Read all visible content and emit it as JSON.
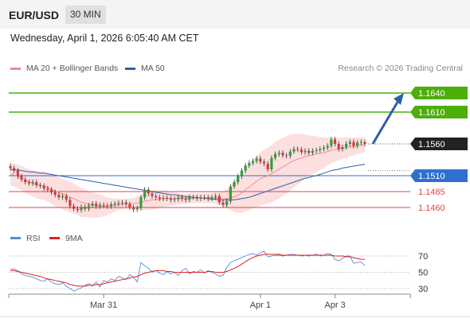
{
  "header": {
    "pair": "EUR/USD",
    "timeframe": "30 MIN"
  },
  "datetime": "Wednesday, April 1, 2026 6:05:40 AM CET",
  "legend": [
    {
      "label": "MA 20 + Bollinger Bands",
      "color": "#f28c8c"
    },
    {
      "label": "MA 50",
      "color": "#2f5fa8"
    }
  ],
  "credit": "Research © 2026 Trading Central",
  "rsi_legend": [
    {
      "label": "RSI",
      "color": "#5b8bd9"
    },
    {
      "label": "9MA",
      "color": "#e02020"
    }
  ],
  "chart_data": {
    "type": "candlestick",
    "price_range": [
      1.143,
      1.1665
    ],
    "levels": [
      {
        "value": 1.164,
        "label": "1.1640",
        "color": "#4caf0a",
        "style": "target"
      },
      {
        "value": 1.161,
        "label": "1.1610",
        "color": "#4caf0a",
        "style": "target"
      },
      {
        "value": 1.156,
        "label": "1.1560",
        "color": "#222222",
        "style": "current"
      },
      {
        "value": 1.151,
        "label": "1.1510",
        "color": "#2f6fd1",
        "style": "pivot"
      },
      {
        "value": 1.1485,
        "label": "1.1485",
        "color": "#d84a4a",
        "style": "support"
      },
      {
        "value": 1.146,
        "label": "1.1460",
        "color": "#d84a4a",
        "style": "support"
      }
    ],
    "closes": [
      1.1522,
      1.1518,
      1.1509,
      1.1504,
      1.15,
      1.1498,
      1.15,
      1.1495,
      1.1494,
      1.149,
      1.1488,
      1.1484,
      1.148,
      1.1476,
      1.1478,
      1.1472,
      1.1462,
      1.1458,
      1.1456,
      1.1461,
      1.1458,
      1.1463,
      1.1466,
      1.1462,
      1.1464,
      1.1463,
      1.1462,
      1.1465,
      1.1466,
      1.1467,
      1.1468,
      1.1465,
      1.146,
      1.1457,
      1.1459,
      1.1476,
      1.1488,
      1.1482,
      1.1478,
      1.1476,
      1.1474,
      1.1475,
      1.1474,
      1.1472,
      1.1473,
      1.1476,
      1.1474,
      1.1472,
      1.1476,
      1.1476,
      1.1474,
      1.1476,
      1.1476,
      1.1474,
      1.1476,
      1.1478,
      1.1468,
      1.1464,
      1.147,
      1.1493,
      1.15,
      1.1509,
      1.1518,
      1.1526,
      1.153,
      1.1533,
      1.1537,
      1.1532,
      1.1529,
      1.152,
      1.1538,
      1.1544,
      1.1546,
      1.1542,
      1.1541,
      1.1548,
      1.1552,
      1.1551,
      1.1547,
      1.1549,
      1.1546,
      1.1549,
      1.155,
      1.1552,
      1.1554,
      1.1557,
      1.1567,
      1.156,
      1.1552,
      1.1555,
      1.156,
      1.1563,
      1.1557,
      1.1562,
      1.1563,
      1.156
    ],
    "ma20": [
      1.1513,
      1.1511,
      1.1509,
      1.1506,
      1.1503,
      1.15,
      1.1498,
      1.1496,
      1.1495,
      1.1494,
      1.1492,
      1.1489,
      1.1486,
      1.1484,
      1.1481,
      1.1479,
      1.1476,
      1.1474,
      1.1471,
      1.1468,
      1.1467,
      1.1465,
      1.1464,
      1.1463,
      1.1462,
      1.1462,
      1.1462,
      1.1463,
      1.1464,
      1.1465,
      1.1465,
      1.1466,
      1.1466,
      1.1466,
      1.1467,
      1.1468,
      1.147,
      1.1471,
      1.1472,
      1.1472,
      1.1473,
      1.1474,
      1.1474,
      1.1474,
      1.1474,
      1.1474,
      1.1474,
      1.1474,
      1.1475,
      1.1475,
      1.1475,
      1.1475,
      1.1475,
      1.1475,
      1.1475,
      1.1475,
      1.1474,
      1.1474,
      1.1474,
      1.1475,
      1.1477,
      1.1479,
      1.1483,
      1.1488,
      1.1492,
      1.1497,
      1.1501,
      1.1505,
      1.1508,
      1.151,
      1.1513,
      1.1517,
      1.152,
      1.1524,
      1.1527,
      1.1531,
      1.1534,
      1.1536,
      1.1538,
      1.154,
      1.1541,
      1.1543,
      1.1544,
      1.1545,
      1.1546,
      1.1548,
      1.155,
      1.1551,
      1.1552,
      1.1553,
      1.1554,
      1.1555,
      1.1556,
      1.1557,
      1.1558,
      1.1559
    ],
    "ma50": [
      1.152,
      1.1519,
      1.1519,
      1.1518,
      1.1517,
      1.1516,
      1.1516,
      1.1515,
      1.1514,
      1.1514,
      1.1513,
      1.1512,
      1.1511,
      1.151,
      1.1509,
      1.1508,
      1.1507,
      1.1506,
      1.1505,
      1.1504,
      1.1503,
      1.1502,
      1.1501,
      1.15,
      1.1499,
      1.1498,
      1.1497,
      1.1496,
      1.1495,
      1.1494,
      1.1493,
      1.1492,
      1.1491,
      1.149,
      1.1489,
      1.1488,
      1.1487,
      1.1486,
      1.1485,
      1.1484,
      1.1483,
      1.1482,
      1.1481,
      1.148,
      1.148,
      1.1479,
      1.1478,
      1.1477,
      1.1477,
      1.1476,
      1.1476,
      1.1475,
      1.1474,
      1.1474,
      1.1473,
      1.1473,
      1.1472,
      1.1472,
      1.1472,
      1.1472,
      1.1472,
      1.1473,
      1.1474,
      1.1475,
      1.1476,
      1.1478,
      1.148,
      1.1482,
      1.1484,
      1.1486,
      1.1488,
      1.149,
      1.1492,
      1.1494,
      1.1496,
      1.1498,
      1.15,
      1.1502,
      1.1504,
      1.1506,
      1.1507,
      1.1509,
      1.151,
      1.1512,
      1.1514,
      1.1516,
      1.1518,
      1.1519,
      1.152,
      1.1522,
      1.1523,
      1.1524,
      1.1525,
      1.1526,
      1.1527,
      1.1528
    ],
    "band_width": [
      0.0018,
      0.0018,
      0.0019,
      0.0019,
      0.002,
      0.002,
      0.0021,
      0.0021,
      0.0022,
      0.0022,
      0.0023,
      0.0023,
      0.0024,
      0.0024,
      0.0024,
      0.0024,
      0.0024,
      0.0024,
      0.0023,
      0.0023,
      0.0022,
      0.0021,
      0.002,
      0.0019,
      0.0018,
      0.0016,
      0.0014,
      0.0012,
      0.001,
      0.0009,
      0.0008,
      0.0008,
      0.0008,
      0.0009,
      0.001,
      0.0012,
      0.0014,
      0.0015,
      0.0015,
      0.0015,
      0.0014,
      0.0013,
      0.0012,
      0.0011,
      0.001,
      0.0009,
      0.0008,
      0.0008,
      0.0008,
      0.0008,
      0.0008,
      0.0008,
      0.0008,
      0.0008,
      0.0008,
      0.0009,
      0.001,
      0.0012,
      0.0015,
      0.0019,
      0.0024,
      0.0028,
      0.0031,
      0.0034,
      0.0036,
      0.0038,
      0.004,
      0.0042,
      0.0043,
      0.0044,
      0.0045,
      0.0046,
      0.0046,
      0.0046,
      0.0045,
      0.0044,
      0.0042,
      0.004,
      0.0038,
      0.0035,
      0.0032,
      0.003,
      0.0028,
      0.0026,
      0.0024,
      0.0022,
      0.002,
      0.0019,
      0.0018,
      0.0017,
      0.0016,
      0.0015,
      0.0014,
      0.0013,
      0.0012,
      0.0012
    ],
    "forecast": {
      "from": 1.156,
      "to": 1.164
    },
    "rsi": {
      "ticks": [
        70,
        50,
        30
      ],
      "range": [
        15,
        85
      ],
      "rsi": [
        54,
        54,
        52,
        48,
        46,
        45,
        44,
        42,
        40,
        39,
        42,
        38,
        36,
        35,
        37,
        33,
        30,
        27,
        29,
        31,
        34,
        36,
        33,
        38,
        32,
        40,
        38,
        42,
        40,
        45,
        43,
        41,
        47,
        44,
        38,
        62,
        58,
        55,
        50,
        52,
        49,
        47,
        51,
        48,
        50,
        46,
        52,
        55,
        48,
        51,
        50,
        53,
        49,
        52,
        50,
        48,
        45,
        46,
        56,
        62,
        64,
        66,
        68,
        70,
        72,
        73,
        71,
        74,
        76,
        69,
        70,
        71,
        71,
        70,
        71,
        72,
        72,
        71,
        70,
        71,
        70,
        71,
        72,
        70,
        71,
        73,
        72,
        66,
        64,
        67,
        70,
        70,
        61,
        62,
        63,
        58
      ],
      "ma9": [
        52,
        52,
        51,
        50,
        49,
        48,
        47,
        46,
        45,
        43,
        42,
        41,
        40,
        39,
        38,
        37,
        35,
        34,
        33,
        33,
        33,
        34,
        34,
        35,
        35,
        36,
        37,
        38,
        39,
        40,
        41,
        42,
        43,
        44,
        45,
        47,
        49,
        50,
        51,
        52,
        52,
        52,
        51,
        51,
        50,
        50,
        50,
        50,
        50,
        50,
        50,
        50,
        50,
        51,
        51,
        50,
        50,
        50,
        51,
        53,
        55,
        57,
        60,
        63,
        66,
        68,
        70,
        71,
        72,
        72,
        72,
        72,
        72,
        71,
        71,
        71,
        71,
        71,
        71,
        71,
        71,
        71,
        71,
        71,
        71,
        71,
        71,
        70,
        70,
        70,
        69,
        69,
        68,
        67,
        66,
        66
      ]
    },
    "x_ticks": [
      {
        "label": "Mar 31",
        "index": 25
      },
      {
        "label": "Apr 1",
        "index": 67
      },
      {
        "label": "Apr 3",
        "index": 87
      }
    ]
  }
}
